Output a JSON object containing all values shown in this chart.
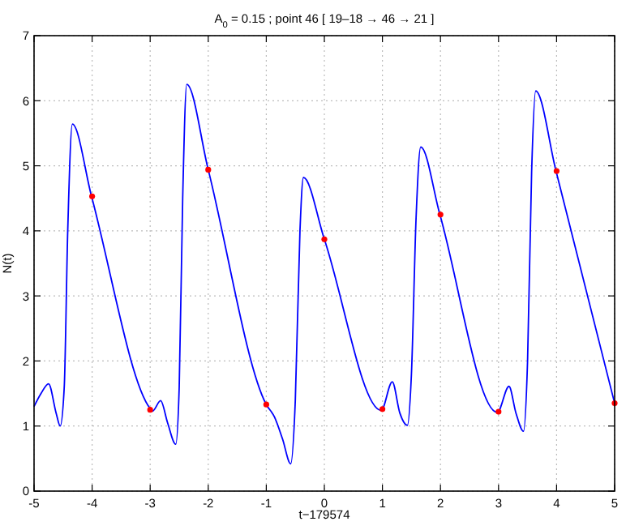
{
  "chart_data": {
    "type": "line",
    "title": "A$_{0}$ = 0.15 ; point 46 [ 19–18 → 46 → 21 ]",
    "xlabel": "t−179574",
    "ylabel": "N(t)",
    "xlim": [
      -5,
      5
    ],
    "ylim": [
      0,
      7
    ],
    "xticks": [
      -5,
      -4,
      -3,
      -2,
      -1,
      0,
      1,
      2,
      3,
      4,
      5
    ],
    "yticks": [
      0,
      1,
      2,
      3,
      4,
      5,
      6,
      7
    ],
    "grid": true,
    "series": [
      {
        "color": "#0000ff",
        "marker": "none",
        "x": [
          -5,
          -4.88,
          -4.75,
          -4.62,
          -4.55,
          -4.48,
          -4.42,
          -4.34,
          -4.01,
          -3.0,
          -2.96,
          -2.82,
          -2.7,
          -2.56,
          -2.5,
          -2.44,
          -2.37,
          -2.0,
          -1.0,
          -0.86,
          -0.72,
          -0.58,
          -0.5,
          -0.42,
          -0.36,
          0,
          0.98,
          1.17,
          1.3,
          1.43,
          1.5,
          1.58,
          1.66,
          1.99,
          2.98,
          3.18,
          3.3,
          3.43,
          3.5,
          3.57,
          3.64,
          3.99,
          5.0
        ],
        "values": [
          1.3,
          1.5,
          1.65,
          1.2,
          1.0,
          1.6,
          4.0,
          5.64,
          4.53,
          1.27,
          1.23,
          1.39,
          1.05,
          0.72,
          1.6,
          4.5,
          6.25,
          4.94,
          1.33,
          1.14,
          0.8,
          0.42,
          1.4,
          4.0,
          4.82,
          3.87,
          1.24,
          1.68,
          1.2,
          1.01,
          1.8,
          4.2,
          5.29,
          4.25,
          1.21,
          1.61,
          1.2,
          0.92,
          2.0,
          4.9,
          6.15,
          4.92,
          1.35
        ]
      },
      {
        "type": "scatter",
        "color": "#ff0000",
        "marker": "circle",
        "x": [
          -4,
          -3,
          -2,
          -1,
          0,
          1,
          2,
          3,
          4,
          5
        ],
        "values": [
          4.53,
          1.25,
          4.94,
          1.33,
          3.87,
          1.26,
          4.25,
          1.22,
          4.92,
          1.35
        ]
      }
    ]
  }
}
